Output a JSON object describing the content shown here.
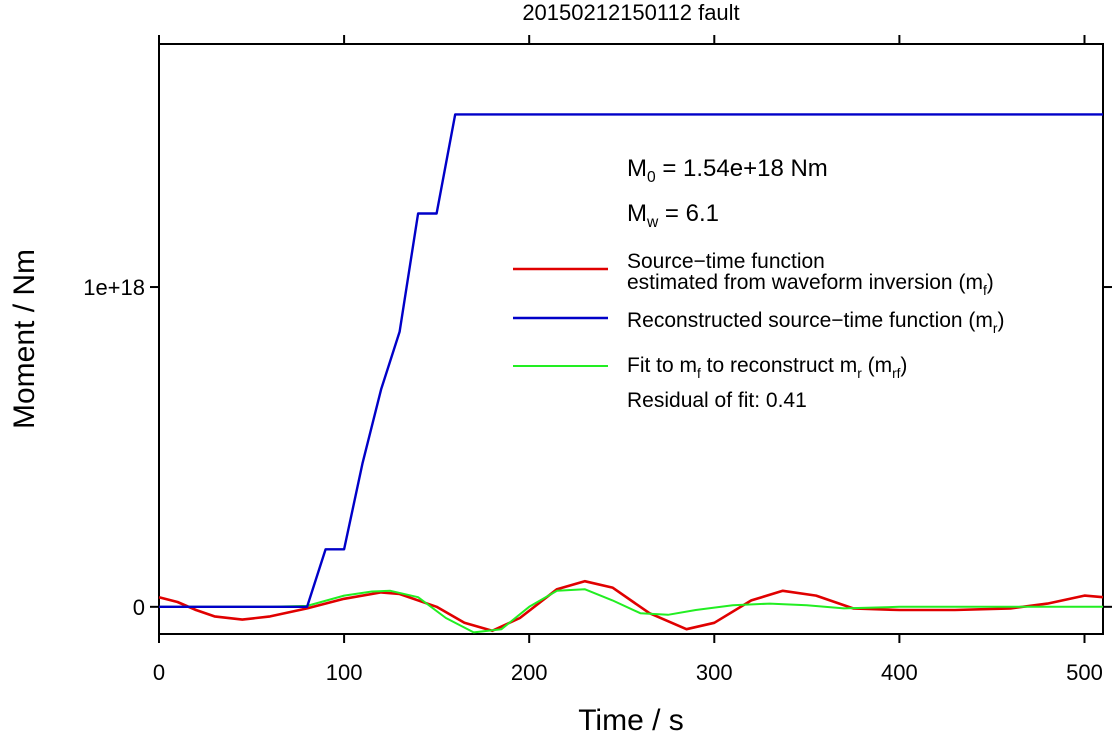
{
  "chart_data": {
    "type": "line",
    "title": "20150212150112 fault",
    "xlabel": "Time / s",
    "ylabel": "Moment / Nm",
    "xlim": [
      0,
      510
    ],
    "ylim": [
      -8.5e+16,
      1.76e+18
    ],
    "x_ticks": [
      {
        "value": 0,
        "label": "0"
      },
      {
        "value": 100,
        "label": "100"
      },
      {
        "value": 200,
        "label": "200"
      },
      {
        "value": 300,
        "label": "300"
      },
      {
        "value": 400,
        "label": "400"
      },
      {
        "value": 500,
        "label": "500"
      }
    ],
    "y_ticks": [
      {
        "value": 0,
        "label": "0"
      },
      {
        "value": 1e+18,
        "label": "1e+18"
      }
    ],
    "grid": false,
    "annotations": {
      "m0": {
        "prefix": "M",
        "sub": "0",
        "rest": " = 1.54e+18 Nm"
      },
      "mw": {
        "prefix": "M",
        "sub": "w",
        "rest": " = 6.1"
      },
      "residual": "Residual of fit: 0.41"
    },
    "legend_position": "right",
    "series": [
      {
        "key": "mf",
        "color": "#e00000",
        "legend": [
          [
            {
              "t": "Source−time function"
            }
          ],
          [
            {
              "t": "estimated from waveform inversion (m"
            },
            {
              "t": "f",
              "sub": true
            },
            {
              "t": ")"
            }
          ]
        ],
        "x": [
          0,
          10,
          20,
          30,
          45,
          60,
          80,
          100,
          120,
          130,
          150,
          165,
          180,
          195,
          215,
          230,
          245,
          265,
          285,
          300,
          320,
          337,
          355,
          375,
          400,
          430,
          460,
          480,
          500,
          510
        ],
        "y": [
          3e+16,
          1.5e+16,
          -1e+16,
          -3e+16,
          -4e+16,
          -3e+16,
          -5000000000000000.0,
          2.5e+16,
          4.5e+16,
          4e+16,
          0.0,
          -5e+16,
          -7.5e+16,
          -3.5e+16,
          5.5e+16,
          8e+16,
          6e+16,
          -2e+16,
          -7e+16,
          -5e+16,
          2e+16,
          5e+16,
          3.5e+16,
          -5000000000000000.0,
          -1e+16,
          -1e+16,
          -5000000000000000.0,
          1e+16,
          3.5e+16,
          3e+16
        ]
      },
      {
        "key": "mr",
        "color": "#0000c8",
        "legend": [
          [
            {
              "t": "Reconstructed source−time function (m"
            },
            {
              "t": "r",
              "sub": true
            },
            {
              "t": ")"
            }
          ]
        ],
        "x": [
          0,
          80,
          90,
          100,
          110,
          120,
          130,
          140,
          150,
          160,
          510
        ],
        "y": [
          0,
          0,
          1.8e+17,
          1.8e+17,
          4.5e+17,
          6.8e+17,
          8.6e+17,
          1.23e+18,
          1.23e+18,
          1.54e+18,
          1.54e+18
        ]
      },
      {
        "key": "mrf",
        "color": "#22ee22",
        "legend": [
          [
            {
              "t": "Fit to m"
            },
            {
              "t": "f",
              "sub": true
            },
            {
              "t": " to reconstruct m"
            },
            {
              "t": "r",
              "sub": true
            },
            {
              "t": " (m"
            },
            {
              "t": "rf",
              "sub": true
            },
            {
              "t": ")"
            }
          ]
        ],
        "x": [
          0,
          20,
          40,
          60,
          80,
          100,
          115,
          125,
          140,
          155,
          170,
          185,
          200,
          215,
          230,
          245,
          260,
          275,
          290,
          310,
          330,
          350,
          370,
          400,
          430,
          460,
          490,
          510
        ],
        "y": [
          0,
          0,
          0,
          0,
          3000000000000000.0,
          3.5e+16,
          4.8e+16,
          5e+16,
          3e+16,
          -3.5e+16,
          -8e+16,
          -7e+16,
          0.0,
          5e+16,
          5.5e+16,
          2e+16,
          -2e+16,
          -2.5e+16,
          -1e+16,
          5000000000000000.0,
          1e+16,
          5000000000000000.0,
          -5000000000000000.0,
          0.0,
          0.0,
          0.0,
          0.0,
          0.0
        ]
      }
    ]
  }
}
